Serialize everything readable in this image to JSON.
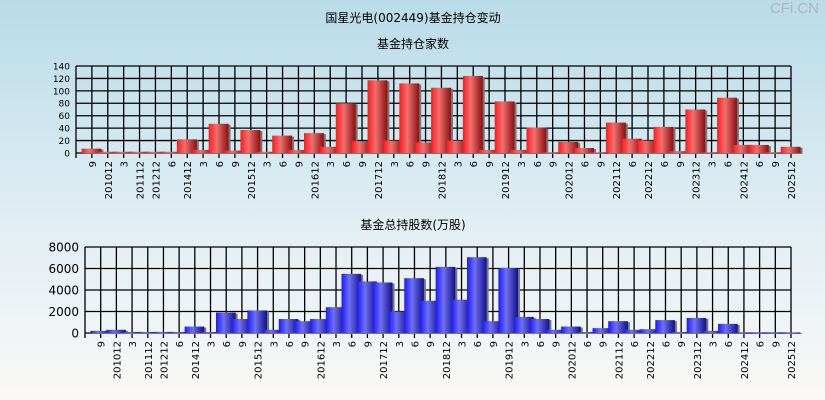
{
  "watermark": "CFi.CN",
  "chart_data": [
    {
      "type": "bar",
      "title": "国星光电(002449)基金持仓变动",
      "subtitle": "基金持仓家数",
      "ylim": [
        0,
        140
      ],
      "yticks": [
        0,
        20,
        40,
        60,
        80,
        100,
        120,
        140
      ],
      "color": "#e02020",
      "categories": [
        "9",
        "201012",
        "3",
        "201112",
        "201212",
        "6",
        "201412",
        "3",
        "6",
        "9",
        "201512",
        "3",
        "6",
        "9",
        "201612",
        "3",
        "6",
        "9",
        "201712",
        "3",
        "6",
        "9",
        "201812",
        "3",
        "6",
        "9",
        "201912",
        "3",
        "6",
        "9",
        "202012",
        "6",
        "9",
        "202112",
        "6",
        "202212",
        "6",
        "9",
        "202312",
        "3",
        "6",
        "202412",
        "6",
        "9",
        "202512"
      ],
      "values": [
        7,
        2,
        2,
        2,
        2,
        2,
        22,
        5,
        47,
        4,
        37,
        2,
        28,
        5,
        32,
        10,
        80,
        19,
        117,
        20,
        112,
        17,
        105,
        20,
        124,
        5,
        83,
        5,
        41,
        1,
        18,
        8,
        1,
        49,
        23,
        20,
        42,
        3,
        70,
        1,
        89,
        13,
        13,
        1,
        10
      ]
    },
    {
      "type": "bar",
      "subtitle": "基金总持股数(万股)",
      "ylim": [
        0,
        8000
      ],
      "yticks": [
        0,
        2000,
        4000,
        6000,
        8000
      ],
      "color": "#3030e0",
      "categories": [
        "9",
        "201012",
        "3",
        "201112",
        "201212",
        "6",
        "201412",
        "3",
        "6",
        "9",
        "201512",
        "3",
        "6",
        "9",
        "201612",
        "3",
        "6",
        "9",
        "201712",
        "3",
        "6",
        "9",
        "201812",
        "3",
        "6",
        "9",
        "201912",
        "3",
        "6",
        "9",
        "202012",
        "6",
        "9",
        "202112",
        "6",
        "202212",
        "6",
        "9",
        "202312",
        "3",
        "6",
        "202412",
        "6",
        "9",
        "202512"
      ],
      "values": [
        200,
        300,
        100,
        100,
        100,
        100,
        600,
        100,
        1900,
        1300,
        2100,
        300,
        1300,
        1100,
        1300,
        2400,
        5500,
        4800,
        4700,
        2000,
        5100,
        3000,
        6150,
        3100,
        7050,
        1100,
        6050,
        1500,
        1300,
        300,
        600,
        100,
        450,
        1100,
        300,
        350,
        1200,
        100,
        1400,
        200,
        850,
        50,
        50,
        50,
        50
      ]
    }
  ]
}
